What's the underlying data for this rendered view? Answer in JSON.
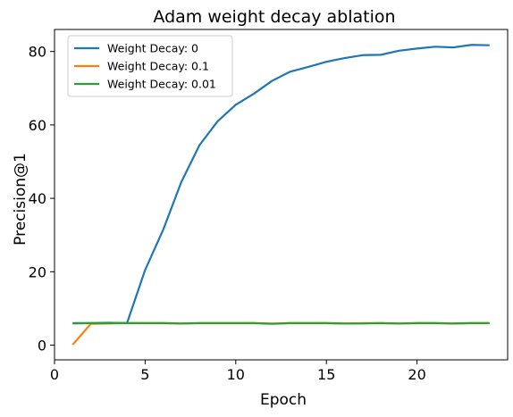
{
  "chart_data": {
    "type": "line",
    "title": "Adam weight decay ablation",
    "xlabel": "Epoch",
    "ylabel": "Precision@1",
    "xlim": [
      0,
      25
    ],
    "ylim": [
      -4,
      86
    ],
    "xticks": [
      0,
      5,
      10,
      15,
      20
    ],
    "yticks": [
      0,
      20,
      40,
      60,
      80
    ],
    "x": [
      1,
      2,
      3,
      4,
      5,
      6,
      7,
      8,
      9,
      10,
      11,
      12,
      13,
      14,
      15,
      16,
      17,
      18,
      19,
      20,
      21,
      22,
      23,
      24
    ],
    "series": [
      {
        "name": "Weight Decay: 0",
        "color": "#1f77b4",
        "values": [
          6.0,
          6.0,
          6.1,
          6.0,
          20.5,
          31.5,
          44.5,
          54.5,
          61.0,
          65.5,
          68.5,
          72.0,
          74.5,
          75.8,
          77.2,
          78.2,
          79.0,
          79.1,
          80.2,
          80.8,
          81.3,
          81.1,
          81.8,
          81.7
        ]
      },
      {
        "name": "Weight Decay: 0.1",
        "color": "#ff7f0e",
        "values": [
          0.1,
          5.8,
          5.9,
          6.0,
          6.0,
          6.0,
          5.9,
          6.0,
          6.0,
          6.0,
          6.0,
          5.9,
          6.0,
          6.0,
          6.0,
          5.9,
          6.0,
          6.0,
          5.9,
          6.0,
          6.0,
          5.9,
          6.0,
          6.0
        ]
      },
      {
        "name": "Weight Decay: 0.01",
        "color": "#2ca02c",
        "values": [
          5.9,
          6.0,
          6.0,
          6.0,
          6.0,
          6.0,
          5.9,
          6.0,
          6.0,
          6.0,
          6.0,
          5.8,
          6.0,
          6.0,
          6.0,
          5.9,
          5.9,
          6.0,
          5.9,
          6.0,
          6.0,
          5.9,
          6.0,
          6.0
        ]
      }
    ],
    "grid": false,
    "legend": "top-left"
  }
}
